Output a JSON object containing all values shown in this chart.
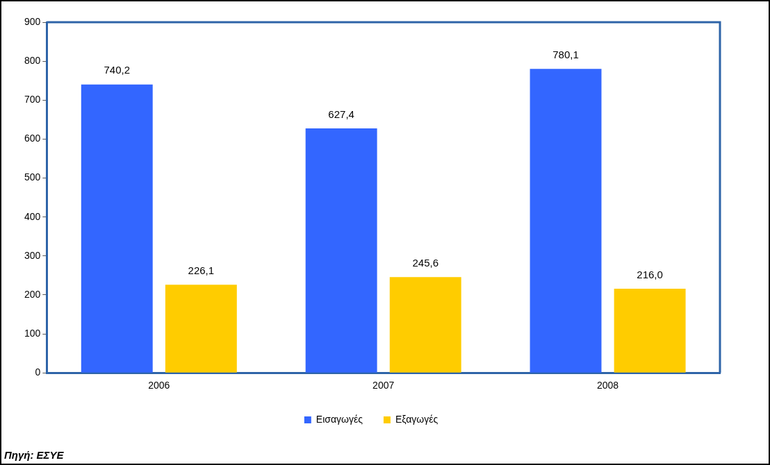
{
  "chart_data": {
    "type": "bar",
    "categories": [
      "2006",
      "2007",
      "2008"
    ],
    "series": [
      {
        "name": "Εισαγωγές",
        "color": "#3366ff",
        "values": [
          740.2,
          627.4,
          780.1
        ],
        "value_labels": [
          "740,2",
          "627,4",
          "780,1"
        ]
      },
      {
        "name": "Εξαγωγές",
        "color": "#ffcc00",
        "values": [
          226.1,
          245.6,
          216.0
        ],
        "value_labels": [
          "226,1",
          "245,6",
          "216,0"
        ]
      }
    ],
    "ylim": [
      0,
      900
    ],
    "yticks": [
      0,
      100,
      200,
      300,
      400,
      500,
      600,
      700,
      800,
      900
    ],
    "grid": false,
    "legend": "bottom",
    "annotations": [
      "Πηγή: ΕΣΥΕ"
    ]
  }
}
